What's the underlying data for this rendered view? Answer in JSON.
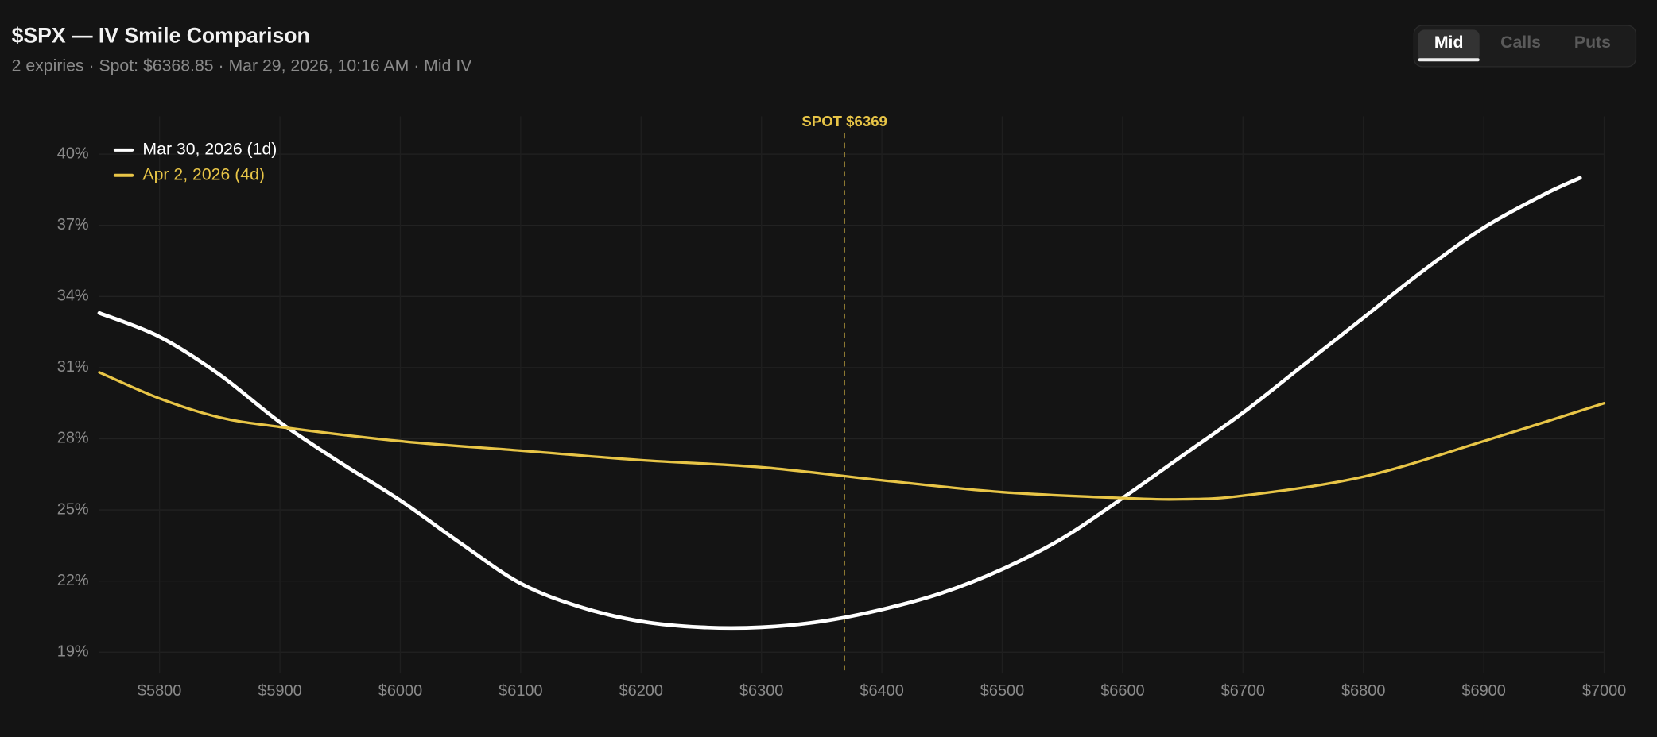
{
  "header": {
    "title": "$SPX — IV Smile Comparison",
    "subtitle": "2 expiries · Spot: $6368.85 · Mar 29, 2026, 10:16 AM · Mid IV"
  },
  "toggle": {
    "options": [
      "Mid",
      "Calls",
      "Puts"
    ],
    "active": "Mid"
  },
  "chart_data": {
    "type": "line",
    "annotation": "SPOT $6369",
    "spot": 6369,
    "spot_color": "#e8c547",
    "xlim": [
      5750,
      7000
    ],
    "xticks": [
      {
        "value": 5800,
        "label": "$5800"
      },
      {
        "value": 5900,
        "label": "$5900"
      },
      {
        "value": 6000,
        "label": "$6000"
      },
      {
        "value": 6100,
        "label": "$6100"
      },
      {
        "value": 6200,
        "label": "$6200"
      },
      {
        "value": 6300,
        "label": "$6300"
      },
      {
        "value": 6400,
        "label": "$6400"
      },
      {
        "value": 6500,
        "label": "$6500"
      },
      {
        "value": 6600,
        "label": "$6600"
      },
      {
        "value": 6700,
        "label": "$6700"
      },
      {
        "value": 6800,
        "label": "$6800"
      },
      {
        "value": 6900,
        "label": "$6900"
      },
      {
        "value": 7000,
        "label": "$7000"
      }
    ],
    "ylim": [
      18.1,
      41.6
    ],
    "yticks": [
      {
        "value": 19,
        "label": "19%"
      },
      {
        "value": 22,
        "label": "22%"
      },
      {
        "value": 25,
        "label": "25%"
      },
      {
        "value": 28,
        "label": "28%"
      },
      {
        "value": 31,
        "label": "31%"
      },
      {
        "value": 34,
        "label": "34%"
      },
      {
        "value": 37,
        "label": "37%"
      },
      {
        "value": 40,
        "label": "40%"
      }
    ],
    "grid": true,
    "legend": "top-left",
    "series": [
      {
        "name": "Mar 30, 2026 (1d)",
        "color": "#ffffff",
        "x": [
          5750,
          5800,
          5850,
          5900,
          5950,
          6000,
          6050,
          6100,
          6150,
          6200,
          6250,
          6300,
          6350,
          6400,
          6450,
          6500,
          6550,
          6600,
          6650,
          6700,
          6750,
          6800,
          6850,
          6900,
          6950,
          6980
        ],
        "values": [
          33.3,
          32.3,
          30.7,
          28.7,
          27.0,
          25.4,
          23.6,
          21.9,
          20.9,
          20.3,
          20.05,
          20.05,
          20.3,
          20.8,
          21.5,
          22.5,
          23.8,
          25.5,
          27.3,
          29.1,
          31.1,
          33.1,
          35.1,
          36.9,
          38.3,
          39.0
        ]
      },
      {
        "name": "Apr 2, 2026 (4d)",
        "color": "#e8c547",
        "x": [
          5750,
          5800,
          5850,
          5900,
          6000,
          6100,
          6200,
          6300,
          6400,
          6500,
          6600,
          6650,
          6700,
          6800,
          6900,
          7000
        ],
        "values": [
          30.8,
          29.7,
          28.9,
          28.5,
          27.9,
          27.5,
          27.1,
          26.8,
          26.25,
          25.75,
          25.5,
          25.45,
          25.6,
          26.4,
          27.9,
          29.5
        ]
      }
    ]
  }
}
